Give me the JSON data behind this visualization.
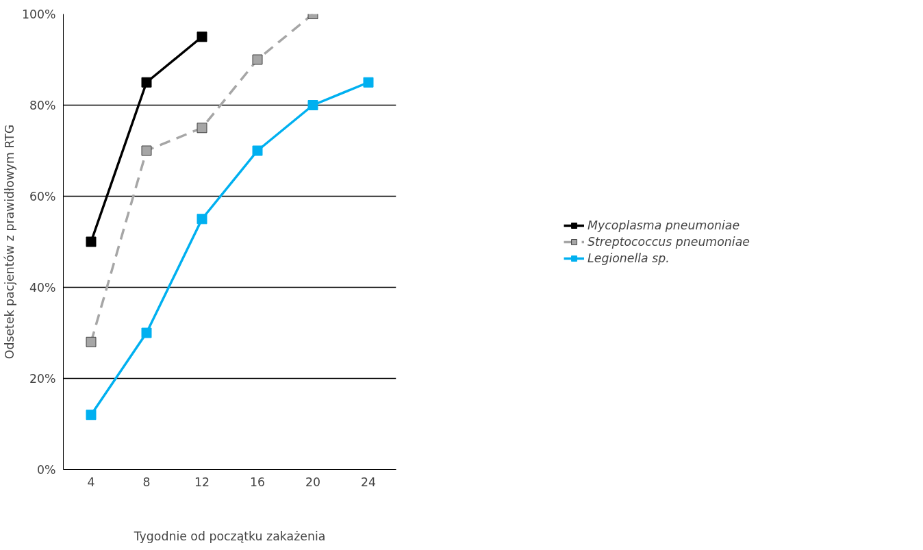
{
  "chart_data": {
    "type": "line",
    "xlabel": "Tygodnie od początku zakażenia",
    "ylabel": "Odsetek pacjentów z prawidłowym RTG",
    "categories": [
      "4",
      "8",
      "12",
      "16",
      "20",
      "24"
    ],
    "series": [
      {
        "name": "Mycoplasma pneumoniae",
        "color": "#000000",
        "line_style": "solid",
        "values": [
          50,
          85,
          95,
          null,
          null,
          null
        ]
      },
      {
        "name": "Streptococcus pneumoniae",
        "color": "#a6a6a6",
        "line_style": "dashed",
        "values": [
          28,
          70,
          75,
          90,
          100,
          null
        ]
      },
      {
        "name": "Legionella sp.",
        "color": "#00b0f0",
        "line_style": "solid",
        "values": [
          12,
          30,
          55,
          70,
          80,
          85
        ]
      }
    ],
    "ylim": [
      0,
      100
    ],
    "yticks": [
      {
        "value": 0,
        "label": "0%"
      },
      {
        "value": 20,
        "label": "20%"
      },
      {
        "value": 40,
        "label": "40%"
      },
      {
        "value": 60,
        "label": "60%"
      },
      {
        "value": 80,
        "label": "80%"
      },
      {
        "value": 100,
        "label": "100%"
      }
    ],
    "grid": "y",
    "legend": "right",
    "marker": "square"
  }
}
